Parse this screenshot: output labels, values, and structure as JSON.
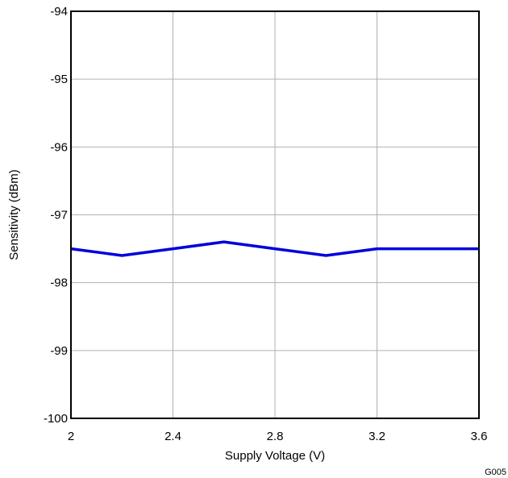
{
  "chart_data": {
    "type": "line",
    "xlabel": "Supply Voltage (V)",
    "ylabel": "Sensitivity (dBm)",
    "xlim": [
      2,
      3.6
    ],
    "ylim": [
      -100,
      -94
    ],
    "xticks": [
      2,
      2.4,
      2.8,
      3.2,
      3.6
    ],
    "xtick_labels": [
      "2",
      "2.4",
      "2.8",
      "3.2",
      "3.6"
    ],
    "yticks": [
      -94,
      -95,
      -96,
      -97,
      -98,
      -99,
      -100
    ],
    "ytick_labels": [
      "-94",
      "-95",
      "-96",
      "-97",
      "-98",
      "-99",
      "-100"
    ],
    "grid": true,
    "series": [
      {
        "color": "#0000dd",
        "x": [
          2.0,
          2.2,
          2.4,
          2.6,
          2.8,
          3.0,
          3.2,
          3.4,
          3.6
        ],
        "y": [
          -97.5,
          -97.6,
          -97.5,
          -97.4,
          -97.5,
          -97.6,
          -97.5,
          -97.5,
          -97.5
        ]
      }
    ],
    "figure_id": "G005"
  }
}
